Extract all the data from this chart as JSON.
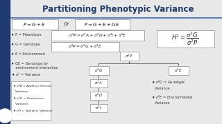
{
  "title": "Partitioning Phenotypic Variance",
  "bg_color": "#e8e8e8",
  "sidebar_color": "#1e3a6e",
  "title_color": "#1e3a6e",
  "accent_color": "#3a6abf",
  "box_edge": "#888888",
  "bullet_color": "#333333",
  "box1_text": "$P = G + E$",
  "or_text": "Or",
  "box2_text": "$P = G + E + GE$",
  "eq1_text": "$\\sigma^2P = \\sigma^2A + \\sigma^2D + \\sigma^2I + \\sigma^2E$",
  "eq2_text": "$\\sigma^2P = \\sigma^2G + \\sigma^2E$",
  "h2_text": "$H^2 = \\dfrac{\\sigma^2G}{\\sigma^2P}$",
  "node_sP": "$\\sigma^2P$",
  "node_sG": "$\\sigma^2G$",
  "node_sE": "$\\sigma^2E$",
  "node_sA": "$\\sigma^2A$",
  "node_sD": "$\\sigma^2D$",
  "node_sI": "$\\sigma^2I$",
  "bullets": [
    "P = Phenotype",
    "G = Genotype",
    "E = Environment",
    "GE = Genotype by\n    environment interaction",
    "$\\sigma^2$ = Variance"
  ],
  "bullets2": [
    "$\\sigma^2A$ = Additive Genetic\n   Variance",
    "$\\sigma^2D$ = Dominance\n   Variance",
    "$\\sigma^2I$ = Epistatic Variance"
  ],
  "bullets3": [
    "$\\sigma^2G$ = Genotypic\n   Variance",
    "$\\sigma^2E$ = Environmental\n   Variance"
  ]
}
